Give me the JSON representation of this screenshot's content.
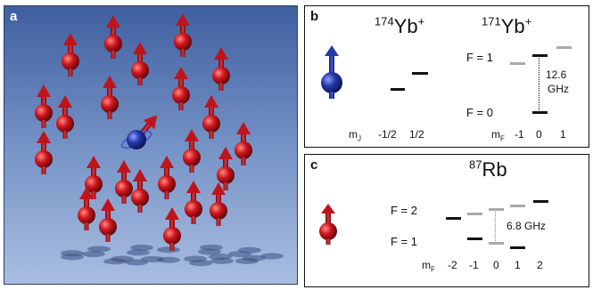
{
  "panel_a": {
    "label": "a",
    "colors": {
      "atom": "#c0141b",
      "ion": "#1f2f8f",
      "background": "#5a78b4"
    }
  },
  "panel_b": {
    "label": "b",
    "left_species": {
      "mass": "174",
      "name": "Yb",
      "charge": "+"
    },
    "right_species": {
      "mass": "171",
      "name": "Yb",
      "charge": "+"
    },
    "f1_label": "F = 1",
    "f0_label": "F = 0",
    "splitting": [
      "12.6",
      "GHz"
    ],
    "mj_axis": {
      "symbol": "m",
      "subscript": "J",
      "values": [
        "-1/2",
        "1/2"
      ]
    },
    "mf_axis": {
      "symbol": "m",
      "subscript": "F",
      "values": [
        "-1",
        "0",
        "1"
      ]
    }
  },
  "panel_c": {
    "label": "c",
    "species": {
      "mass": "87",
      "name": "Rb"
    },
    "f2_label": "F = 2",
    "f1_label": "F = 1",
    "splitting": "6.8 GHz",
    "mf_axis": {
      "symbol": "m",
      "subscript": "F",
      "values": [
        "-2",
        "-1",
        "0",
        "1",
        "2"
      ]
    }
  }
}
